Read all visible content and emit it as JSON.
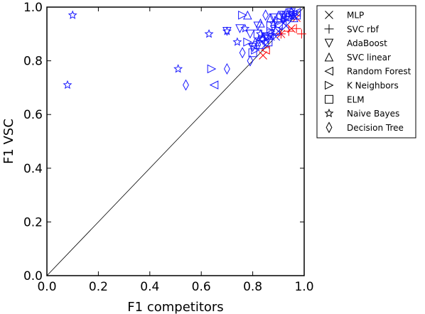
{
  "chart_data": {
    "type": "scatter",
    "title": "",
    "xlabel": "F1 competitors",
    "ylabel": "F1 VSC",
    "xlim": [
      0.0,
      1.0
    ],
    "ylim": [
      0.0,
      1.0
    ],
    "xticks": [
      "0.0",
      "0.2",
      "0.4",
      "0.6",
      "0.8",
      "1.0"
    ],
    "yticks": [
      "0.0",
      "0.2",
      "0.4",
      "0.6",
      "0.8",
      "1.0"
    ],
    "grid": false,
    "legend_position": "outside-right",
    "reference_line": {
      "from": [
        0,
        0
      ],
      "to": [
        1,
        1
      ]
    },
    "colors": {
      "above_diagonal": "#1a1aff",
      "below_diagonal": "#ff0000",
      "reference": "#000000"
    },
    "series": [
      {
        "name": "MLP",
        "marker": "x",
        "points": [
          [
            0.84,
            0.82
          ],
          [
            0.89,
            0.89
          ],
          [
            0.91,
            0.9
          ],
          [
            0.93,
            0.93
          ],
          [
            0.95,
            0.92
          ],
          [
            0.97,
            0.96
          ],
          [
            0.9,
            0.91
          ],
          [
            0.87,
            0.89
          ],
          [
            0.85,
            0.86
          ],
          [
            0.96,
            0.97
          ],
          [
            0.92,
            0.94
          ]
        ]
      },
      {
        "name": "SVC rbf",
        "marker": "+",
        "points": [
          [
            0.88,
            0.9
          ],
          [
            0.91,
            0.9
          ],
          [
            0.94,
            0.91
          ],
          [
            0.97,
            0.92
          ],
          [
            0.99,
            0.9
          ],
          [
            0.93,
            0.95
          ],
          [
            0.86,
            0.88
          ],
          [
            0.96,
            0.97
          ]
        ]
      },
      {
        "name": "AdaBoost",
        "marker": "triangle-down",
        "points": [
          [
            0.7,
            0.91
          ],
          [
            0.75,
            0.92
          ],
          [
            0.79,
            0.9
          ],
          [
            0.82,
            0.93
          ],
          [
            0.85,
            0.89
          ],
          [
            0.88,
            0.96
          ],
          [
            0.92,
            0.97
          ],
          [
            0.95,
            0.98
          ],
          [
            0.8,
            0.85
          ],
          [
            0.86,
            0.88
          ]
        ]
      },
      {
        "name": "SVC linear",
        "marker": "triangle-up",
        "points": [
          [
            0.78,
            0.97
          ],
          [
            0.83,
            0.94
          ],
          [
            0.87,
            0.96
          ],
          [
            0.9,
            0.97
          ],
          [
            0.93,
            0.98
          ],
          [
            0.96,
            0.96
          ],
          [
            0.81,
            0.87
          ],
          [
            0.84,
            0.89
          ]
        ]
      },
      {
        "name": "Random Forest",
        "marker": "triangle-left",
        "points": [
          [
            0.65,
            0.71
          ],
          [
            0.8,
            0.86
          ],
          [
            0.83,
            0.88
          ],
          [
            0.86,
            0.9
          ],
          [
            0.9,
            0.93
          ],
          [
            0.94,
            0.97
          ],
          [
            0.97,
            0.98
          ],
          [
            0.85,
            0.84
          ]
        ]
      },
      {
        "name": "K Neighbors",
        "marker": "triangle-right",
        "points": [
          [
            0.64,
            0.77
          ],
          [
            0.76,
            0.97
          ],
          [
            0.81,
            0.84
          ],
          [
            0.84,
            0.88
          ],
          [
            0.87,
            0.91
          ],
          [
            0.9,
            0.95
          ],
          [
            0.93,
            0.97
          ],
          [
            0.96,
            0.98
          ],
          [
            0.78,
            0.87
          ]
        ]
      },
      {
        "name": "ELM",
        "marker": "square",
        "points": [
          [
            0.8,
            0.83
          ],
          [
            0.83,
            0.86
          ],
          [
            0.86,
            0.87
          ],
          [
            0.89,
            0.91
          ],
          [
            0.91,
            0.96
          ],
          [
            0.94,
            0.97
          ],
          [
            0.97,
            0.97
          ],
          [
            0.82,
            0.9
          ],
          [
            0.87,
            0.93
          ]
        ]
      },
      {
        "name": "Naive Bayes",
        "marker": "star",
        "points": [
          [
            0.08,
            0.71
          ],
          [
            0.1,
            0.97
          ],
          [
            0.51,
            0.77
          ],
          [
            0.63,
            0.9
          ],
          [
            0.7,
            0.91
          ],
          [
            0.74,
            0.87
          ],
          [
            0.77,
            0.92
          ],
          [
            0.83,
            0.9
          ],
          [
            0.88,
            0.94
          ],
          [
            0.93,
            0.96
          ],
          [
            0.96,
            0.97
          ]
        ]
      },
      {
        "name": "Decision Tree",
        "marker": "diamond",
        "points": [
          [
            0.54,
            0.71
          ],
          [
            0.7,
            0.77
          ],
          [
            0.76,
            0.83
          ],
          [
            0.79,
            0.8
          ],
          [
            0.82,
            0.86
          ],
          [
            0.85,
            0.97
          ],
          [
            0.88,
            0.93
          ],
          [
            0.92,
            0.96
          ],
          [
            0.95,
            0.98
          ],
          [
            0.84,
            0.88
          ]
        ]
      }
    ]
  }
}
